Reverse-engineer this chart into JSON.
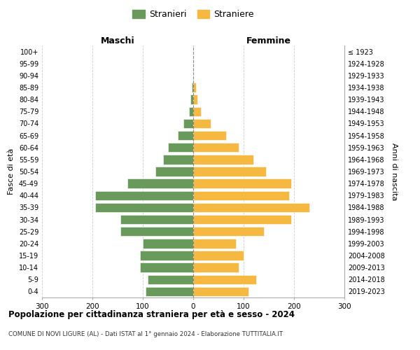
{
  "age_groups": [
    "0-4",
    "5-9",
    "10-14",
    "15-19",
    "20-24",
    "25-29",
    "30-34",
    "35-39",
    "40-44",
    "45-49",
    "50-54",
    "55-59",
    "60-64",
    "65-69",
    "70-74",
    "75-79",
    "80-84",
    "85-89",
    "90-94",
    "95-99",
    "100+"
  ],
  "birth_years": [
    "2019-2023",
    "2014-2018",
    "2009-2013",
    "2004-2008",
    "1999-2003",
    "1994-1998",
    "1989-1993",
    "1984-1988",
    "1979-1983",
    "1974-1978",
    "1969-1973",
    "1964-1968",
    "1959-1963",
    "1954-1958",
    "1949-1953",
    "1944-1948",
    "1939-1943",
    "1934-1938",
    "1929-1933",
    "1924-1928",
    "≤ 1923"
  ],
  "males": [
    95,
    90,
    105,
    105,
    100,
    145,
    145,
    195,
    195,
    130,
    75,
    60,
    50,
    30,
    20,
    8,
    5,
    3,
    0,
    0,
    0
  ],
  "females": [
    110,
    125,
    90,
    100,
    85,
    140,
    195,
    230,
    190,
    195,
    145,
    120,
    90,
    65,
    35,
    15,
    8,
    5,
    0,
    0,
    0
  ],
  "male_color": "#6a9a5b",
  "female_color": "#f5b942",
  "background_color": "#ffffff",
  "grid_color": "#cccccc",
  "title": "Popolazione per cittadinanza straniera per età e sesso - 2024",
  "subtitle": "COMUNE DI NOVI LIGURE (AL) - Dati ISTAT al 1° gennaio 2024 - Elaborazione TUTTITALIA.IT",
  "left_label": "Maschi",
  "right_label": "Femmine",
  "ylabel_left": "Fasce di età",
  "ylabel_right": "Anni di nascita",
  "legend_male": "Stranieri",
  "legend_female": "Straniere",
  "xlim": 300,
  "xticks": [
    -300,
    -200,
    -100,
    0,
    100,
    200,
    300
  ]
}
